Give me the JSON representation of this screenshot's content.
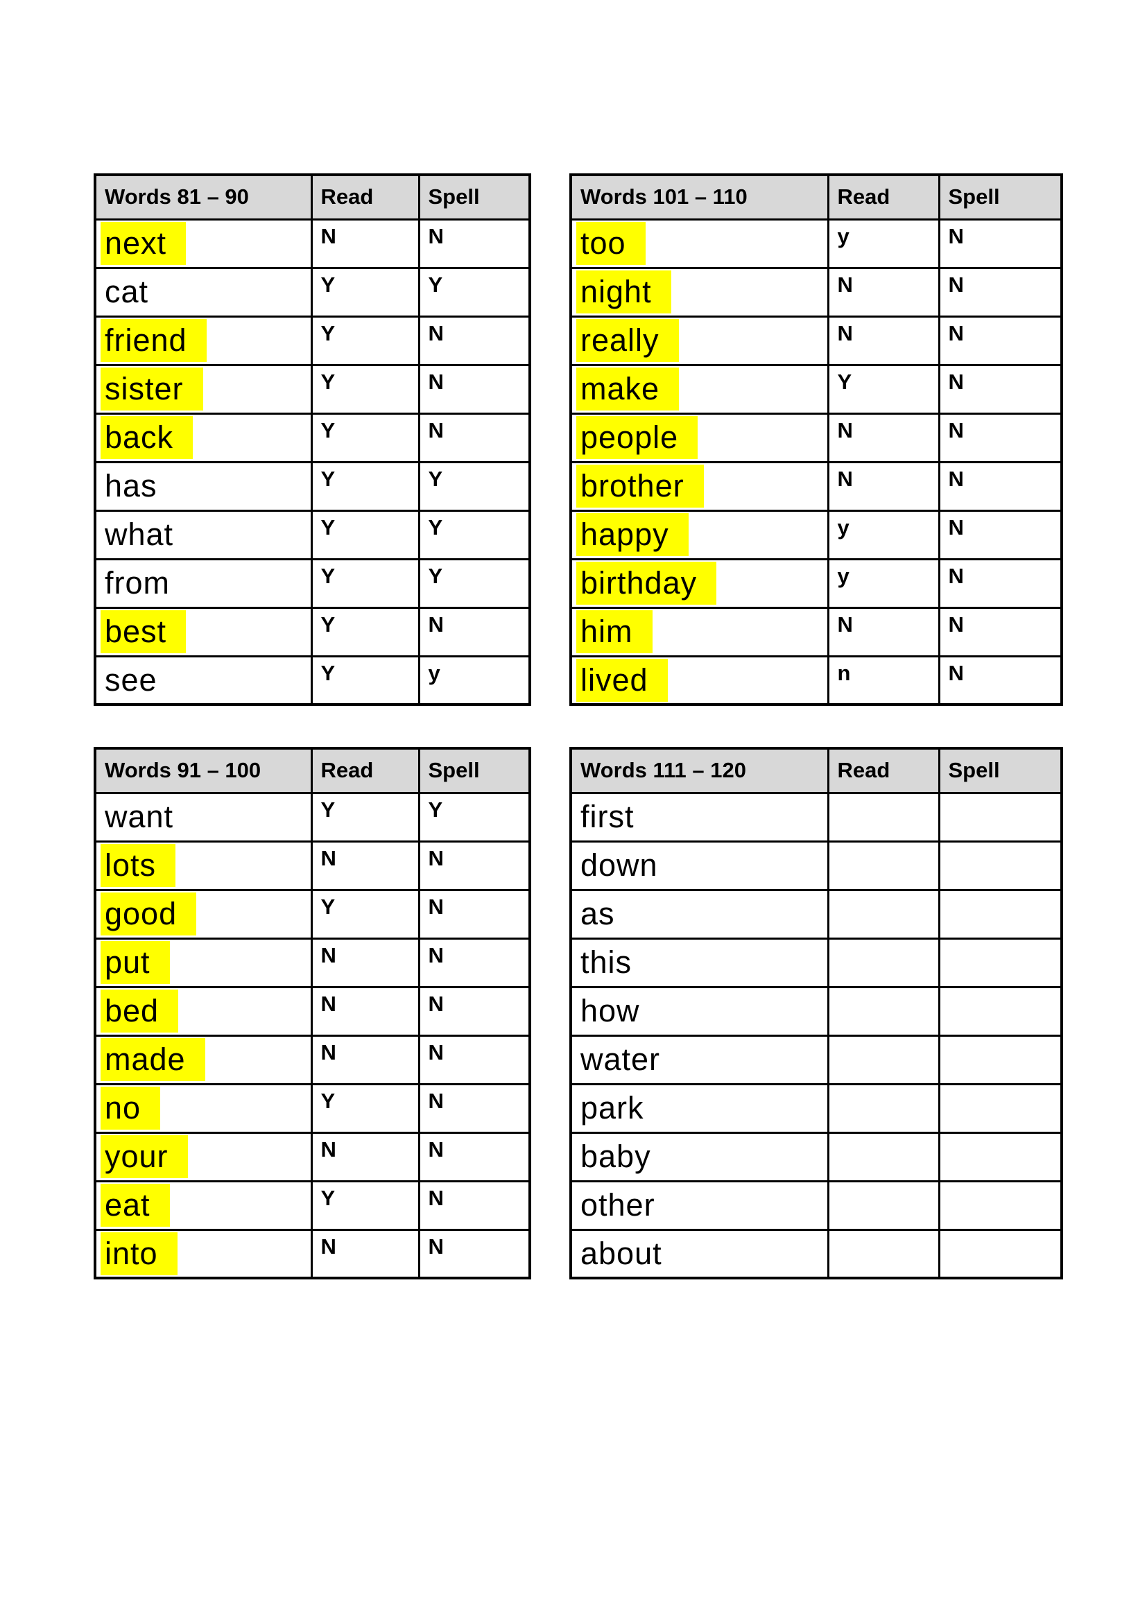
{
  "colors": {
    "highlight": "#ffff00",
    "header_bg": "#d8d8d8",
    "border": "#000000",
    "text": "#000000"
  },
  "tables": [
    {
      "title": "Words 81 – 90",
      "read_label": "Read",
      "spell_label": "Spell",
      "rows": [
        {
          "word": "next",
          "highlighted": true,
          "read": "N",
          "spell": "N"
        },
        {
          "word": "cat",
          "highlighted": false,
          "read": "Y",
          "spell": "Y"
        },
        {
          "word": "friend",
          "highlighted": true,
          "read": "Y",
          "spell": "N"
        },
        {
          "word": "sister",
          "highlighted": true,
          "read": "Y",
          "spell": "N"
        },
        {
          "word": "back",
          "highlighted": true,
          "read": "Y",
          "spell": "N"
        },
        {
          "word": "has",
          "highlighted": false,
          "read": "Y",
          "spell": "Y"
        },
        {
          "word": "what",
          "highlighted": false,
          "read": "Y",
          "spell": "Y"
        },
        {
          "word": "from",
          "highlighted": false,
          "read": "Y",
          "spell": "Y"
        },
        {
          "word": "best",
          "highlighted": true,
          "read": "Y",
          "spell": "N"
        },
        {
          "word": "see",
          "highlighted": false,
          "read": "Y",
          "spell": "y"
        }
      ]
    },
    {
      "title": "Words 101 – 110",
      "read_label": "Read",
      "spell_label": "Spell",
      "rows": [
        {
          "word": "too",
          "highlighted": true,
          "read": "y",
          "spell": "N"
        },
        {
          "word": "night",
          "highlighted": true,
          "read": "N",
          "spell": "N"
        },
        {
          "word": "really",
          "highlighted": true,
          "read": "N",
          "spell": "N"
        },
        {
          "word": "make",
          "highlighted": true,
          "read": "Y",
          "spell": "N"
        },
        {
          "word": "people",
          "highlighted": true,
          "read": "N",
          "spell": "N"
        },
        {
          "word": "brother",
          "highlighted": true,
          "read": "N",
          "spell": "N"
        },
        {
          "word": "happy",
          "highlighted": true,
          "read": "y",
          "spell": "N"
        },
        {
          "word": "birthday",
          "highlighted": true,
          "read": "y",
          "spell": "N"
        },
        {
          "word": "him",
          "highlighted": true,
          "read": "N",
          "spell": "N"
        },
        {
          "word": "lived",
          "highlighted": true,
          "read": "n",
          "spell": "N"
        }
      ]
    },
    {
      "title": "Words 91 – 100",
      "read_label": "Read",
      "spell_label": "Spell",
      "rows": [
        {
          "word": "want",
          "highlighted": false,
          "read": "Y",
          "spell": "Y"
        },
        {
          "word": "lots",
          "highlighted": true,
          "read": "N",
          "spell": "N"
        },
        {
          "word": "good",
          "highlighted": true,
          "read": "Y",
          "spell": "N"
        },
        {
          "word": "put",
          "highlighted": true,
          "read": "N",
          "spell": "N"
        },
        {
          "word": "bed",
          "highlighted": true,
          "read": "N",
          "spell": "N"
        },
        {
          "word": "made",
          "highlighted": true,
          "read": "N",
          "spell": "N"
        },
        {
          "word": "no",
          "highlighted": true,
          "read": "Y",
          "spell": "N"
        },
        {
          "word": "your",
          "highlighted": true,
          "read": "N",
          "spell": "N"
        },
        {
          "word": "eat",
          "highlighted": true,
          "read": "Y",
          "spell": "N"
        },
        {
          "word": "into",
          "highlighted": true,
          "read": "N",
          "spell": "N"
        }
      ]
    },
    {
      "title": "Words 111 – 120",
      "read_label": "Read",
      "spell_label": "Spell",
      "rows": [
        {
          "word": "first",
          "highlighted": false,
          "read": "",
          "spell": ""
        },
        {
          "word": "down",
          "highlighted": false,
          "read": "",
          "spell": ""
        },
        {
          "word": "as",
          "highlighted": false,
          "read": "",
          "spell": ""
        },
        {
          "word": "this",
          "highlighted": false,
          "read": "",
          "spell": ""
        },
        {
          "word": "how",
          "highlighted": false,
          "read": "",
          "spell": ""
        },
        {
          "word": "water",
          "highlighted": false,
          "read": "",
          "spell": ""
        },
        {
          "word": "park",
          "highlighted": false,
          "read": "",
          "spell": ""
        },
        {
          "word": "baby",
          "highlighted": false,
          "read": "",
          "spell": ""
        },
        {
          "word": "other",
          "highlighted": false,
          "read": "",
          "spell": ""
        },
        {
          "word": "about",
          "highlighted": false,
          "read": "",
          "spell": ""
        }
      ]
    }
  ]
}
